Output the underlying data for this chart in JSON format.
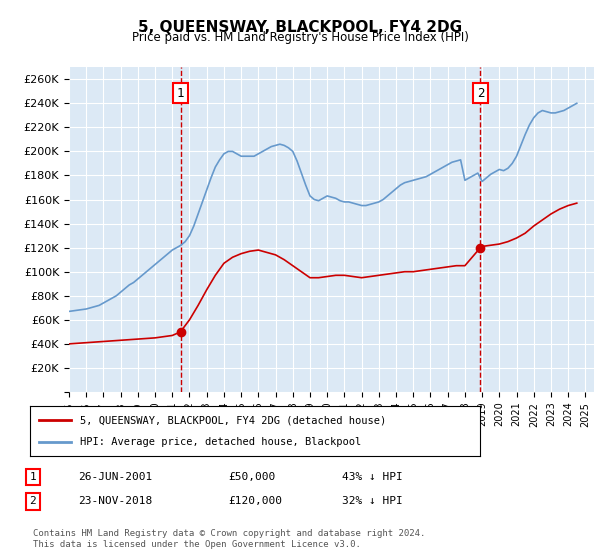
{
  "title": "5, QUEENSWAY, BLACKPOOL, FY4 2DG",
  "subtitle": "Price paid vs. HM Land Registry's House Price Index (HPI)",
  "bg_color": "#dce9f5",
  "plot_bg_color": "#dce9f5",
  "red_label": "5, QUEENSWAY, BLACKPOOL, FY4 2DG (detached house)",
  "blue_label": "HPI: Average price, detached house, Blackpool",
  "annotation1": {
    "num": "1",
    "date": "26-JUN-2001",
    "price": "£50,000",
    "pct": "43% ↓ HPI",
    "x_year": 2001.48,
    "y_val": 50000
  },
  "annotation2": {
    "num": "2",
    "date": "23-NOV-2018",
    "price": "£120,000",
    "pct": "32% ↓ HPI",
    "x_year": 2018.9,
    "y_val": 120000
  },
  "footer": "Contains HM Land Registry data © Crown copyright and database right 2024.\nThis data is licensed under the Open Government Licence v3.0.",
  "ylim": [
    0,
    270000
  ],
  "yticks": [
    0,
    20000,
    40000,
    60000,
    80000,
    100000,
    120000,
    140000,
    160000,
    180000,
    200000,
    220000,
    240000,
    260000
  ],
  "xlim_start": 1995.0,
  "xlim_end": 2025.5,
  "xtick_years": [
    1995,
    1996,
    1997,
    1998,
    1999,
    2000,
    2001,
    2002,
    2003,
    2004,
    2005,
    2006,
    2007,
    2008,
    2009,
    2010,
    2011,
    2012,
    2013,
    2014,
    2015,
    2016,
    2017,
    2018,
    2019,
    2020,
    2021,
    2022,
    2023,
    2024,
    2025
  ],
  "red_line_color": "#cc0000",
  "blue_line_color": "#6699cc",
  "vline_color": "#cc0000",
  "red_dot_color": "#cc0000",
  "hpi_data": {
    "years": [
      1995.0,
      1995.25,
      1995.5,
      1995.75,
      1996.0,
      1996.25,
      1996.5,
      1996.75,
      1997.0,
      1997.25,
      1997.5,
      1997.75,
      1998.0,
      1998.25,
      1998.5,
      1998.75,
      1999.0,
      1999.25,
      1999.5,
      1999.75,
      2000.0,
      2000.25,
      2000.5,
      2000.75,
      2001.0,
      2001.25,
      2001.5,
      2001.75,
      2002.0,
      2002.25,
      2002.5,
      2002.75,
      2003.0,
      2003.25,
      2003.5,
      2003.75,
      2004.0,
      2004.25,
      2004.5,
      2004.75,
      2005.0,
      2005.25,
      2005.5,
      2005.75,
      2006.0,
      2006.25,
      2006.5,
      2006.75,
      2007.0,
      2007.25,
      2007.5,
      2007.75,
      2008.0,
      2008.25,
      2008.5,
      2008.75,
      2009.0,
      2009.25,
      2009.5,
      2009.75,
      2010.0,
      2010.25,
      2010.5,
      2010.75,
      2011.0,
      2011.25,
      2011.5,
      2011.75,
      2012.0,
      2012.25,
      2012.5,
      2012.75,
      2013.0,
      2013.25,
      2013.5,
      2013.75,
      2014.0,
      2014.25,
      2014.5,
      2014.75,
      2015.0,
      2015.25,
      2015.5,
      2015.75,
      2016.0,
      2016.25,
      2016.5,
      2016.75,
      2017.0,
      2017.25,
      2017.5,
      2017.75,
      2018.0,
      2018.25,
      2018.5,
      2018.75,
      2019.0,
      2019.25,
      2019.5,
      2019.75,
      2020.0,
      2020.25,
      2020.5,
      2020.75,
      2021.0,
      2021.25,
      2021.5,
      2021.75,
      2022.0,
      2022.25,
      2022.5,
      2022.75,
      2023.0,
      2023.25,
      2023.5,
      2023.75,
      2024.0,
      2024.25,
      2024.5
    ],
    "values": [
      67000,
      67500,
      68000,
      68500,
      69000,
      70000,
      71000,
      72000,
      74000,
      76000,
      78000,
      80000,
      83000,
      86000,
      89000,
      91000,
      94000,
      97000,
      100000,
      103000,
      106000,
      109000,
      112000,
      115000,
      118000,
      120000,
      122000,
      125000,
      130000,
      138000,
      148000,
      158000,
      168000,
      178000,
      187000,
      193000,
      198000,
      200000,
      200000,
      198000,
      196000,
      196000,
      196000,
      196000,
      198000,
      200000,
      202000,
      204000,
      205000,
      206000,
      205000,
      203000,
      200000,
      192000,
      182000,
      172000,
      163000,
      160000,
      159000,
      161000,
      163000,
      162000,
      161000,
      159000,
      158000,
      158000,
      157000,
      156000,
      155000,
      155000,
      156000,
      157000,
      158000,
      160000,
      163000,
      166000,
      169000,
      172000,
      174000,
      175000,
      176000,
      177000,
      178000,
      179000,
      181000,
      183000,
      185000,
      187000,
      189000,
      191000,
      192000,
      193000,
      176000,
      178000,
      180000,
      182000,
      175000,
      178000,
      181000,
      183000,
      185000,
      184000,
      186000,
      190000,
      196000,
      205000,
      214000,
      222000,
      228000,
      232000,
      234000,
      233000,
      232000,
      232000,
      233000,
      234000,
      236000,
      238000,
      240000
    ]
  },
  "red_price_data": {
    "years": [
      1995.0,
      1995.5,
      1996.0,
      1996.5,
      1997.0,
      1997.5,
      1998.0,
      1998.5,
      1999.0,
      1999.5,
      2000.0,
      2000.5,
      2001.0,
      2001.48,
      2001.5,
      2002.0,
      2002.5,
      2003.0,
      2003.5,
      2004.0,
      2004.5,
      2005.0,
      2005.5,
      2006.0,
      2006.5,
      2007.0,
      2007.5,
      2008.0,
      2008.5,
      2009.0,
      2009.5,
      2010.0,
      2010.5,
      2011.0,
      2011.5,
      2012.0,
      2012.5,
      2013.0,
      2013.5,
      2014.0,
      2014.5,
      2015.0,
      2015.5,
      2016.0,
      2016.5,
      2017.0,
      2017.5,
      2018.0,
      2018.9,
      2019.0,
      2019.5,
      2020.0,
      2020.5,
      2021.0,
      2021.5,
      2022.0,
      2022.5,
      2023.0,
      2023.5,
      2024.0,
      2024.5
    ],
    "values": [
      40000,
      40500,
      41000,
      41500,
      42000,
      42500,
      43000,
      43500,
      44000,
      44500,
      45000,
      46000,
      47000,
      50000,
      50500,
      60000,
      72000,
      85000,
      97000,
      107000,
      112000,
      115000,
      117000,
      118000,
      116000,
      114000,
      110000,
      105000,
      100000,
      95000,
      95000,
      96000,
      97000,
      97000,
      96000,
      95000,
      96000,
      97000,
      98000,
      99000,
      100000,
      100000,
      101000,
      102000,
      103000,
      104000,
      105000,
      105000,
      120000,
      121000,
      122000,
      123000,
      125000,
      128000,
      132000,
      138000,
      143000,
      148000,
      152000,
      155000,
      157000
    ]
  }
}
